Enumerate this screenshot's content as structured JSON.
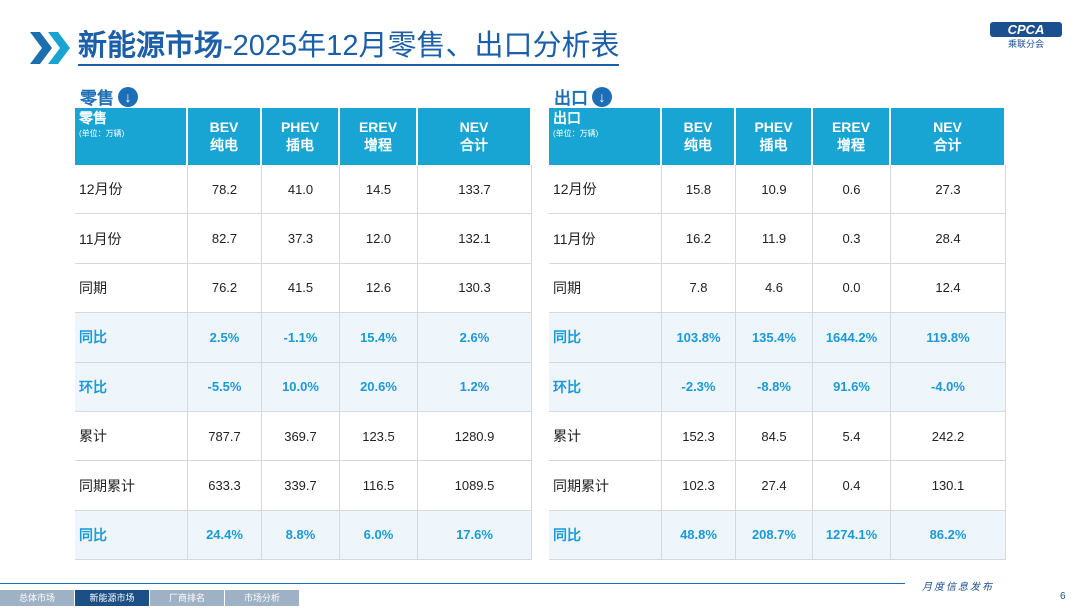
{
  "header": {
    "title_bold": "新能源市场",
    "title_rest": "-2025年12月零售、出口分析表",
    "logo": "CPCA",
    "logo_sub": "乘联分会"
  },
  "tables": [
    {
      "section": "零售",
      "label": "零售",
      "unit": "(单位：万辆)",
      "columns": [
        {
          "code": "BEV",
          "name": "纯电"
        },
        {
          "code": "PHEV",
          "name": "插电"
        },
        {
          "code": "EREV",
          "name": "增程"
        },
        {
          "code": "NEV",
          "name": "合计"
        }
      ],
      "rows": [
        [
          "12月份",
          "78.2",
          "41.0",
          "14.5",
          "133.7"
        ],
        [
          "11月份",
          "82.7",
          "37.3",
          "12.0",
          "132.1"
        ],
        [
          "同期",
          "76.2",
          "41.5",
          "12.6",
          "130.3"
        ],
        [
          "同比",
          "2.5%",
          "-1.1%",
          "15.4%",
          "2.6%"
        ],
        [
          "环比",
          "-5.5%",
          "10.0%",
          "20.6%",
          "1.2%"
        ],
        [
          "累计",
          "787.7",
          "369.7",
          "123.5",
          "1280.9"
        ],
        [
          "同期累计",
          "633.3",
          "339.7",
          "116.5",
          "1089.5"
        ],
        [
          "同比",
          "24.4%",
          "8.8%",
          "6.0%",
          "17.6%"
        ]
      ]
    },
    {
      "section": "出口",
      "label": "出口",
      "unit": "(单位：万辆)",
      "columns": [
        {
          "code": "BEV",
          "name": "纯电"
        },
        {
          "code": "PHEV",
          "name": "插电"
        },
        {
          "code": "EREV",
          "name": "增程"
        },
        {
          "code": "NEV",
          "name": "合计"
        }
      ],
      "rows": [
        [
          "12月份",
          "15.8",
          "10.9",
          "0.6",
          "27.3"
        ],
        [
          "11月份",
          "16.2",
          "11.9",
          "0.3",
          "28.4"
        ],
        [
          "同期",
          "7.8",
          "4.6",
          "0.0",
          "12.4"
        ],
        [
          "同比",
          "103.8%",
          "135.4%",
          "1644.2%",
          "119.8%"
        ],
        [
          "环比",
          "-2.3%",
          "-8.8%",
          "91.6%",
          "-4.0%"
        ],
        [
          "累计",
          "152.3",
          "84.5",
          "5.4",
          "242.2"
        ],
        [
          "同期累计",
          "102.3",
          "27.4",
          "0.4",
          "130.1"
        ],
        [
          "同比",
          "48.8%",
          "208.7%",
          "1274.1%",
          "86.2%"
        ]
      ]
    }
  ],
  "footer": {
    "tabs": [
      "总体市场",
      "新能源市场",
      "厂商排名",
      "市场分析"
    ],
    "slogan": "月度信息发布",
    "page": "6"
  }
}
